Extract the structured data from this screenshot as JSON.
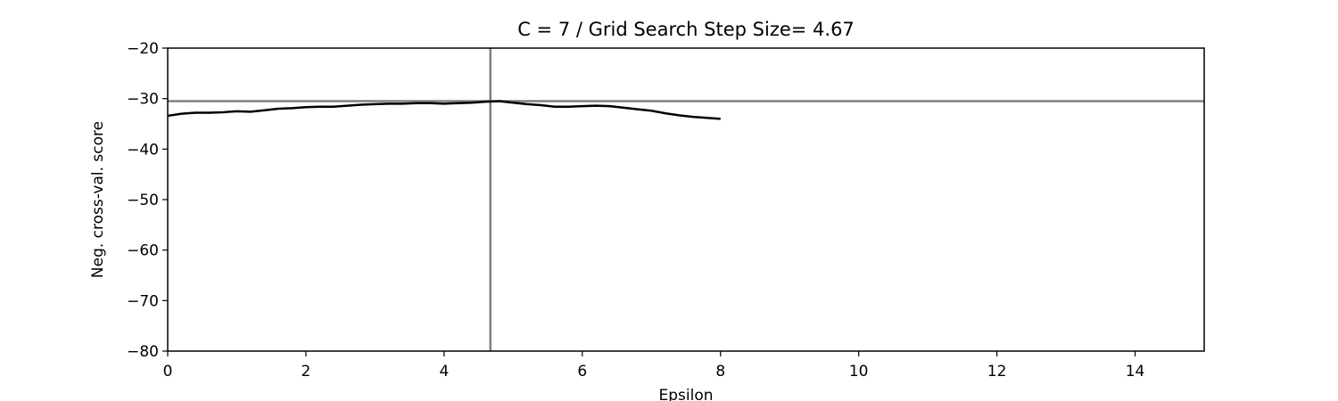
{
  "chart_data": {
    "type": "line",
    "title": "C = 7 / Grid Search Step Size= 4.67",
    "xlabel": "Epsilon",
    "ylabel": "Neg. cross-val. score",
    "xlim": [
      0,
      15
    ],
    "ylim": [
      -80,
      -20
    ],
    "x_ticks": [
      0,
      2,
      4,
      6,
      8,
      10,
      12,
      14
    ],
    "x_tick_labels": [
      "0",
      "2",
      "4",
      "6",
      "8",
      "10",
      "12",
      "14"
    ],
    "y_ticks": [
      -20,
      -30,
      -40,
      -50,
      -60,
      -70,
      -80
    ],
    "y_tick_labels": [
      "−20",
      "−30",
      "−40",
      "−50",
      "−60",
      "−70",
      "−80"
    ],
    "grid": false,
    "series": [
      {
        "color": "#000000",
        "x": [
          0,
          0.2,
          0.4,
          0.6,
          0.8,
          1.0,
          1.2,
          1.4,
          1.6,
          1.8,
          2.0,
          2.2,
          2.4,
          2.6,
          2.8,
          3.0,
          3.2,
          3.4,
          3.6,
          3.8,
          4.0,
          4.2,
          4.4,
          4.6,
          4.8,
          5.0,
          5.2,
          5.4,
          5.6,
          5.8,
          6.0,
          6.2,
          6.4,
          6.6,
          6.8,
          7.0,
          7.2,
          7.4,
          7.6,
          7.8,
          8.0
        ],
        "y": [
          -33.4,
          -33.0,
          -32.8,
          -32.8,
          -32.7,
          -32.5,
          -32.6,
          -32.3,
          -32.0,
          -31.9,
          -31.7,
          -31.6,
          -31.6,
          -31.4,
          -31.2,
          -31.1,
          -31.0,
          -31.0,
          -30.9,
          -30.9,
          -31.0,
          -30.9,
          -30.8,
          -30.6,
          -30.5,
          -30.8,
          -31.1,
          -31.3,
          -31.6,
          -31.6,
          -31.5,
          -31.4,
          -31.5,
          -31.8,
          -32.1,
          -32.4,
          -32.9,
          -33.3,
          -33.6,
          -33.8,
          -34.0
        ]
      }
    ],
    "reference_lines": {
      "vertical_x": 4.67,
      "horizontal_y": -30.5,
      "color": "#808080"
    }
  }
}
